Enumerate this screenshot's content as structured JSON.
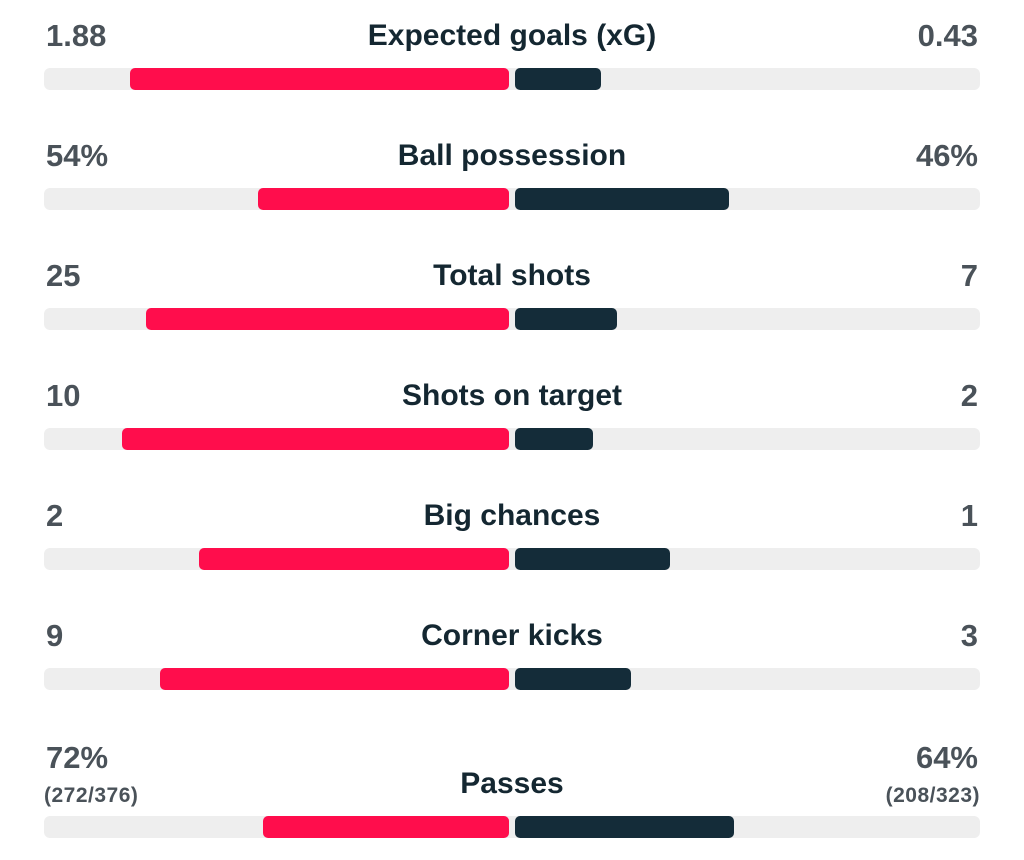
{
  "colors": {
    "home": "#ff0d4c",
    "away": "#142c39",
    "track": "#eeeeee",
    "value_text": "#4a5259",
    "label_text": "#142731"
  },
  "stats": [
    {
      "label": "Expected goals (xG)",
      "home": "1.88",
      "away": "0.43",
      "home_share": 0.814,
      "away_share": 0.186
    },
    {
      "label": "Ball possession",
      "home": "54%",
      "away": "46%",
      "home_share": 0.54,
      "away_share": 0.46
    },
    {
      "label": "Total shots",
      "home": "25",
      "away": "7",
      "home_share": 0.781,
      "away_share": 0.219
    },
    {
      "label": "Shots on target",
      "home": "10",
      "away": "2",
      "home_share": 0.833,
      "away_share": 0.167
    },
    {
      "label": "Big chances",
      "home": "2",
      "away": "1",
      "home_share": 0.667,
      "away_share": 0.333
    },
    {
      "label": "Corner kicks",
      "home": "9",
      "away": "3",
      "home_share": 0.75,
      "away_share": 0.25
    },
    {
      "label": "Passes",
      "home": "72%",
      "away": "64%",
      "home_detail": "(272/376)",
      "away_detail": "(208/323)",
      "home_share": 0.53,
      "away_share": 0.47
    }
  ]
}
